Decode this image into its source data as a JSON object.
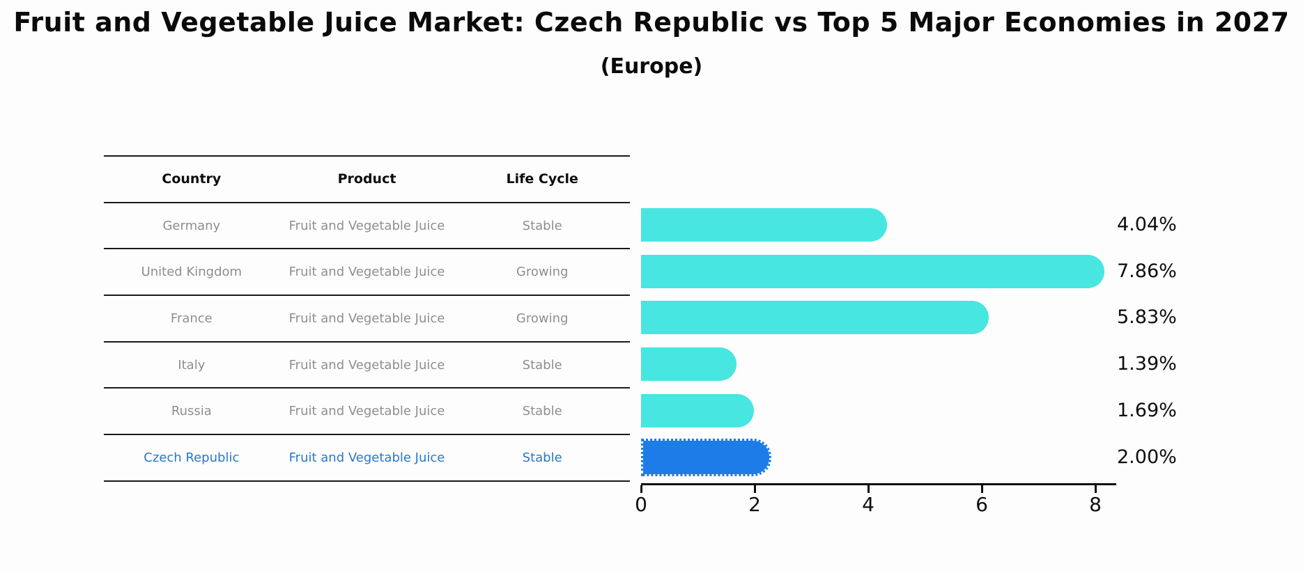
{
  "title": "Fruit and Vegetable Juice Market: Czech Republic vs Top 5 Major Economies in 2027",
  "subtitle": "(Europe)",
  "table": {
    "headers": [
      "Country",
      "Product",
      "Life Cycle"
    ],
    "rows": [
      {
        "country": "Germany",
        "product": "Fruit and Vegetable Juice",
        "life_cycle": "Stable",
        "highlight": false
      },
      {
        "country": "United Kingdom",
        "product": "Fruit and Vegetable Juice",
        "life_cycle": "Growing",
        "highlight": false
      },
      {
        "country": "France",
        "product": "Fruit and Vegetable Juice",
        "life_cycle": "Growing",
        "highlight": false
      },
      {
        "country": "Italy",
        "product": "Fruit and Vegetable Juice",
        "life_cycle": "Stable",
        "highlight": false
      },
      {
        "country": "Russia",
        "product": "Fruit and Vegetable Juice",
        "life_cycle": "Stable",
        "highlight": false
      },
      {
        "country": "Czech Republic",
        "product": "Fruit and Vegetable Juice",
        "life_cycle": "Stable",
        "highlight": true
      }
    ]
  },
  "chart_data": {
    "type": "bar",
    "orientation": "horizontal",
    "title": "Fruit and Vegetable Juice Market: Czech Republic vs Top 5 Major Economies in 2027",
    "subtitle": "(Europe)",
    "categories": [
      "Germany",
      "United Kingdom",
      "France",
      "Italy",
      "Russia",
      "Czech Republic"
    ],
    "values": [
      4.04,
      7.86,
      5.83,
      1.39,
      1.69,
      2.0
    ],
    "value_labels": [
      "4.04%",
      "7.86%",
      "5.83%",
      "1.39%",
      "1.69%",
      "2.00%"
    ],
    "xlabel": "",
    "ylabel": "",
    "xlim": [
      0,
      8.36
    ],
    "xticks": [
      0,
      2,
      4,
      6,
      8
    ],
    "grid": false,
    "legend": false,
    "bar_color": "#48e6e0",
    "highlight_color": "#1e7ce8",
    "highlight_index": 5,
    "highlight_style": "dotted-border"
  },
  "colors": {
    "background": "#fdfdfd",
    "bar_cyan": "#48e6e0",
    "bar_blue": "#1e7ce8",
    "highlight_text": "#2878c8",
    "table_text": "#8e8e8e",
    "line": "#1a1a1a"
  }
}
